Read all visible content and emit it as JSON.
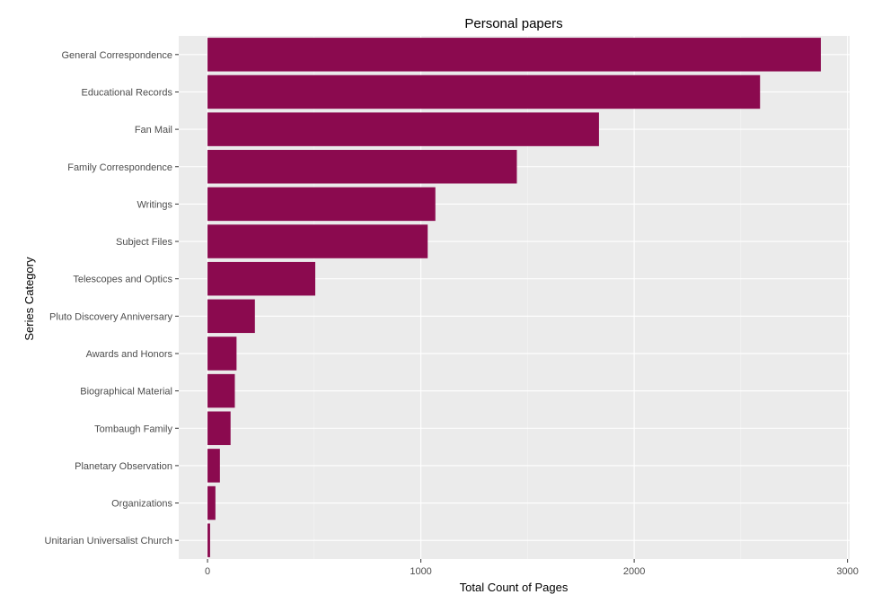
{
  "chart_data": {
    "type": "bar",
    "orientation": "horizontal",
    "title": "Personal papers",
    "xlabel": "Total Count of Pages",
    "ylabel": "Series Category",
    "categories": [
      "General Correspondence",
      "Educational Records",
      "Fan Mail",
      "Family Correspondence",
      "Writings",
      "Subject Files",
      "Telescopes and Optics",
      "Pluto Discovery Anniversary",
      "Awards and Honors",
      "Biographical Material",
      "Tombaugh Family",
      "Planetary Observation",
      "Organizations",
      "Unitarian Universalist Church"
    ],
    "values": [
      2875,
      2590,
      1835,
      1450,
      1068,
      1032,
      505,
      222,
      136,
      128,
      108,
      58,
      37,
      12
    ],
    "xlim": [
      -135,
      3010
    ],
    "xticks": [
      0,
      1000,
      2000,
      3000
    ],
    "xtick_labels": [
      "0",
      "1000",
      "2000",
      "3000"
    ],
    "grid": true,
    "bar_color": "#8b0a4f",
    "panel_color": "#ebebeb"
  }
}
